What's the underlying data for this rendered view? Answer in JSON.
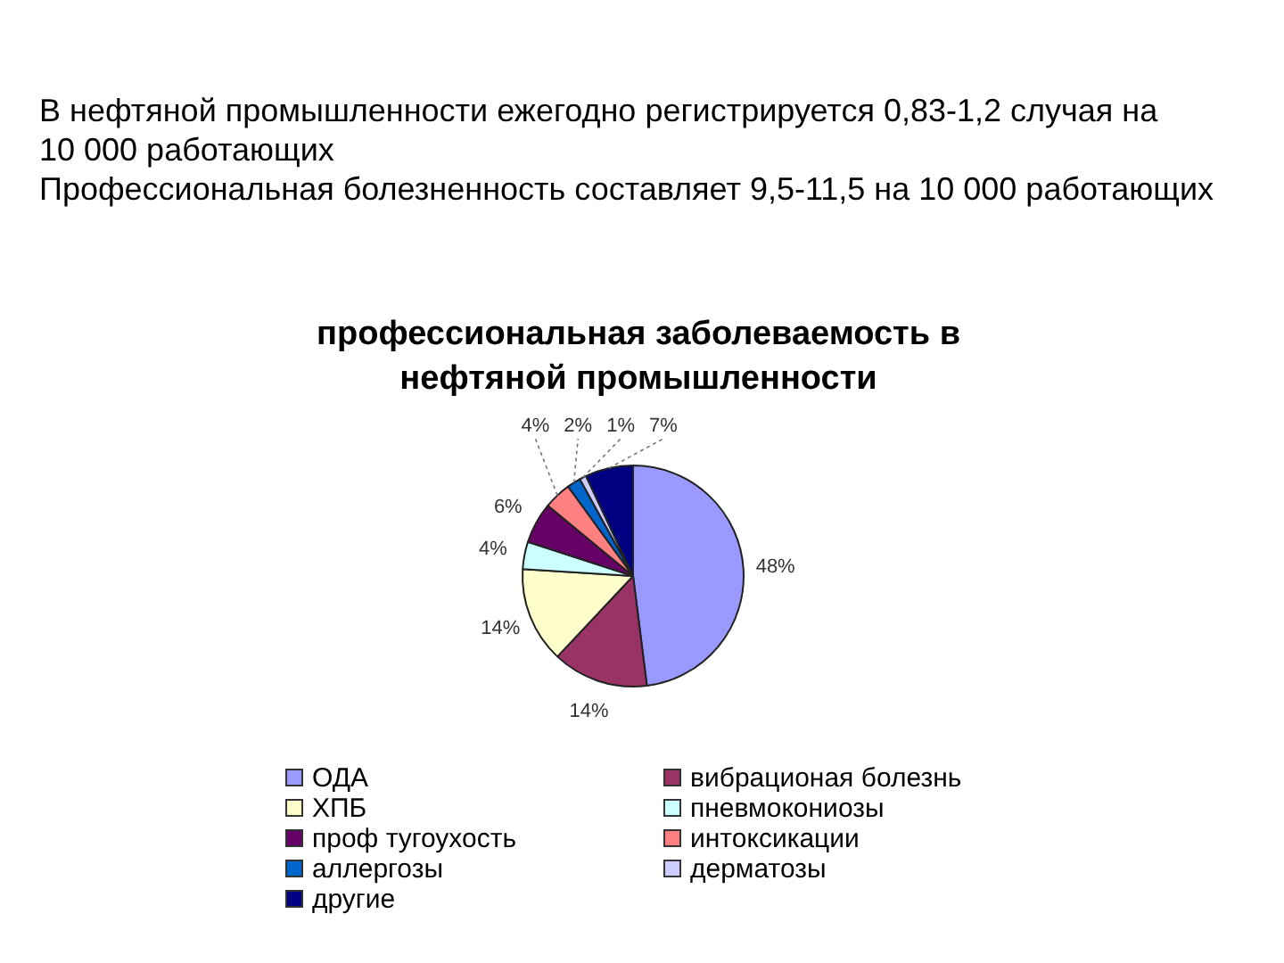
{
  "chart_data": {
    "type": "pie",
    "title": "профессиональная заболеваемость в нефтяной промышленности",
    "annotations": [
      "В нефтяной промышленности ежегодно регистрируется 0,83-1,2 случая на 10 000 работающих",
      "Профессиональная болезненность составляет 9,5-11,5 на 10 000 работающих"
    ],
    "categories": [
      "ОДА",
      "вибрационая болезнь",
      "ХПБ",
      "пневмокониозы",
      "проф тугоухость",
      "интоксикации",
      "аллергозы",
      "дерматозы",
      "другие"
    ],
    "values": [
      48,
      14,
      14,
      4,
      6,
      4,
      2,
      1,
      7
    ],
    "colors": [
      "#9999ff",
      "#993366",
      "#ffffcc",
      "#ccffff",
      "#660066",
      "#ff8080",
      "#0066cc",
      "#ccccff",
      "#000080"
    ],
    "value_labels": [
      "48%",
      "14%",
      "14%",
      "4%",
      "6%",
      "4%",
      "2%",
      "1%",
      "7%"
    ],
    "legend": "bottom"
  }
}
